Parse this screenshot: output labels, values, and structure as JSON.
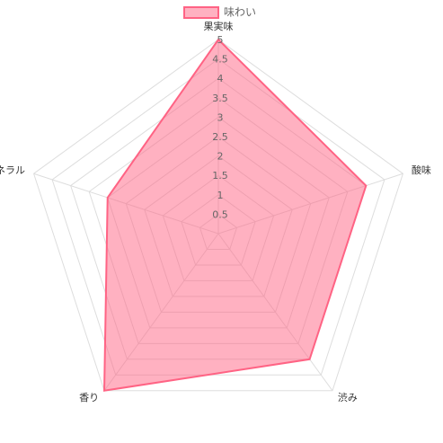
{
  "chart_data": {
    "type": "radar",
    "categories": [
      "果実味",
      "酸味",
      "渋み",
      "香り",
      "ミネラル"
    ],
    "series": [
      {
        "name": "味わい",
        "color": "#ff6384",
        "values": [
          5,
          4,
          4,
          5,
          3
        ]
      }
    ],
    "rlim": [
      0,
      5
    ],
    "rticks": [
      0.5,
      1,
      1.5,
      2,
      2.5,
      3,
      3.5,
      4,
      4.5,
      5
    ],
    "grid": true,
    "legend": "top"
  }
}
